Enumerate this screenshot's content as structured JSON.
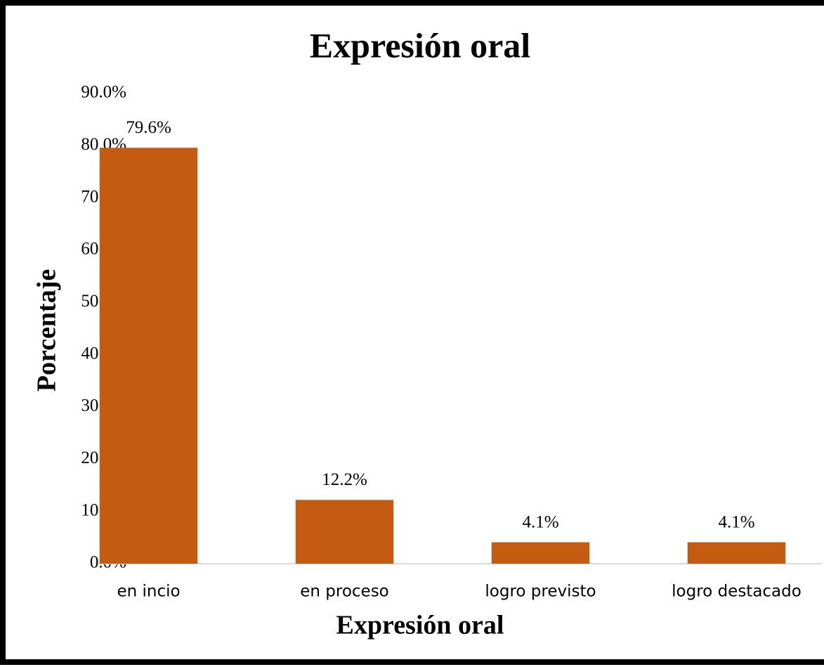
{
  "chart_data": {
    "type": "bar",
    "title": "Expresión oral",
    "x_label": "Expresión oral",
    "y_label": "Porcentaje",
    "categories": [
      "en incio",
      "en proceso",
      "logro previsto",
      "logro destacado"
    ],
    "values": [
      79.6,
      12.2,
      4.1,
      4.1
    ],
    "value_labels": [
      "79.6%",
      "12.2%",
      "4.1%",
      "4.1%"
    ],
    "color": "#c55a11",
    "ylim": [
      0,
      90
    ],
    "yticks": [
      {
        "value": 0,
        "label": "0.0%"
      },
      {
        "value": 10,
        "label": "10.0%"
      },
      {
        "value": 20,
        "label": "20.0%"
      },
      {
        "value": 30,
        "label": "30.0%"
      },
      {
        "value": 40,
        "label": "40.0%"
      },
      {
        "value": 50,
        "label": "50.0%"
      },
      {
        "value": 60,
        "label": "60.0%"
      },
      {
        "value": 70,
        "label": "70.0%"
      },
      {
        "value": 80,
        "label": "80.0%"
      },
      {
        "value": 90,
        "label": "90.0%"
      }
    ],
    "grid": false
  }
}
